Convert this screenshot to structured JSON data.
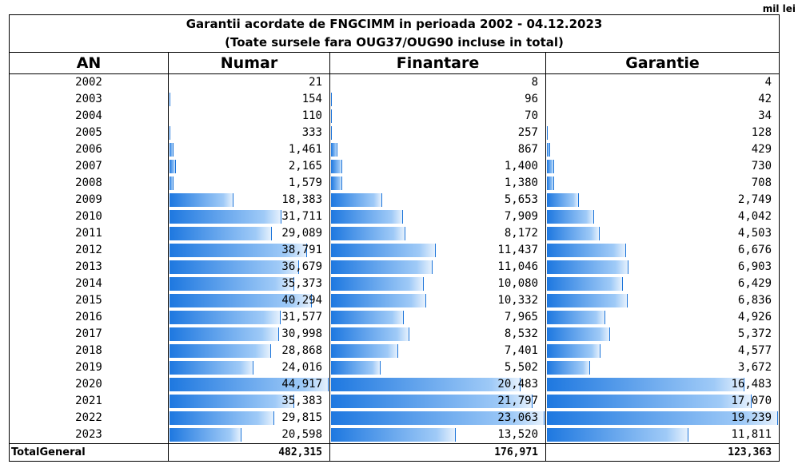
{
  "unit_label": "mil lei",
  "title_line1": "Garantii acordate de FNGCIMM in perioada 2002 - 04.12.2023",
  "title_line2": "(Toate sursele fara OUG37/OUG90 incluse in total)",
  "headers": {
    "year": "AN",
    "numar": "Numar",
    "finantare": "Finantare",
    "garantie": "Garantie"
  },
  "chart_data": {
    "type": "table",
    "title": "Garantii acordate de FNGCIMM in perioada 2002 - 04.12.2023",
    "subtitle": "(Toate sursele fara OUG37/OUG90 incluse in total)",
    "unit": "mil lei",
    "columns": [
      "AN",
      "Numar",
      "Finantare",
      "Garantie"
    ],
    "rows": [
      {
        "year": "2002",
        "numar": 21,
        "numar_text": "21",
        "finantare": 8,
        "finantare_text": "8",
        "garantie": 4,
        "garantie_text": "4"
      },
      {
        "year": "2003",
        "numar": 154,
        "numar_text": "154",
        "finantare": 96,
        "finantare_text": "96",
        "garantie": 42,
        "garantie_text": "42"
      },
      {
        "year": "2004",
        "numar": 110,
        "numar_text": "110",
        "finantare": 70,
        "finantare_text": "70",
        "garantie": 34,
        "garantie_text": "34"
      },
      {
        "year": "2005",
        "numar": 333,
        "numar_text": "333",
        "finantare": 257,
        "finantare_text": "257",
        "garantie": 128,
        "garantie_text": "128"
      },
      {
        "year": "2006",
        "numar": 1461,
        "numar_text": "1,461",
        "finantare": 867,
        "finantare_text": "867",
        "garantie": 429,
        "garantie_text": "429"
      },
      {
        "year": "2007",
        "numar": 2165,
        "numar_text": "2,165",
        "finantare": 1400,
        "finantare_text": "1,400",
        "garantie": 730,
        "garantie_text": "730"
      },
      {
        "year": "2008",
        "numar": 1579,
        "numar_text": "1,579",
        "finantare": 1380,
        "finantare_text": "1,380",
        "garantie": 708,
        "garantie_text": "708"
      },
      {
        "year": "2009",
        "numar": 18383,
        "numar_text": "18,383",
        "finantare": 5653,
        "finantare_text": "5,653",
        "garantie": 2749,
        "garantie_text": "2,749"
      },
      {
        "year": "2010",
        "numar": 31711,
        "numar_text": "31,711",
        "finantare": 7909,
        "finantare_text": "7,909",
        "garantie": 4042,
        "garantie_text": "4,042"
      },
      {
        "year": "2011",
        "numar": 29089,
        "numar_text": "29,089",
        "finantare": 8172,
        "finantare_text": "8,172",
        "garantie": 4503,
        "garantie_text": "4,503"
      },
      {
        "year": "2012",
        "numar": 38791,
        "numar_text": "38,791",
        "finantare": 11437,
        "finantare_text": "11,437",
        "garantie": 6676,
        "garantie_text": "6,676"
      },
      {
        "year": "2013",
        "numar": 36679,
        "numar_text": "36,679",
        "finantare": 11046,
        "finantare_text": "11,046",
        "garantie": 6903,
        "garantie_text": "6,903"
      },
      {
        "year": "2014",
        "numar": 35373,
        "numar_text": "35,373",
        "finantare": 10080,
        "finantare_text": "10,080",
        "garantie": 6429,
        "garantie_text": "6,429"
      },
      {
        "year": "2015",
        "numar": 40294,
        "numar_text": "40,294",
        "finantare": 10332,
        "finantare_text": "10,332",
        "garantie": 6836,
        "garantie_text": "6,836"
      },
      {
        "year": "2016",
        "numar": 31577,
        "numar_text": "31,577",
        "finantare": 7965,
        "finantare_text": "7,965",
        "garantie": 4926,
        "garantie_text": "4,926"
      },
      {
        "year": "2017",
        "numar": 30998,
        "numar_text": "30,998",
        "finantare": 8532,
        "finantare_text": "8,532",
        "garantie": 5372,
        "garantie_text": "5,372"
      },
      {
        "year": "2018",
        "numar": 28868,
        "numar_text": "28,868",
        "finantare": 7401,
        "finantare_text": "7,401",
        "garantie": 4577,
        "garantie_text": "4,577"
      },
      {
        "year": "2019",
        "numar": 24016,
        "numar_text": "24,016",
        "finantare": 5502,
        "finantare_text": "5,502",
        "garantie": 3672,
        "garantie_text": "3,672"
      },
      {
        "year": "2020",
        "numar": 44917,
        "numar_text": "44,917",
        "finantare": 20483,
        "finantare_text": "20,483",
        "garantie": 16483,
        "garantie_text": "16,483"
      },
      {
        "year": "2021",
        "numar": 35383,
        "numar_text": "35,383",
        "finantare": 21797,
        "finantare_text": "21,797",
        "garantie": 17070,
        "garantie_text": "17,070"
      },
      {
        "year": "2022",
        "numar": 29815,
        "numar_text": "29,815",
        "finantare": 23063,
        "finantare_text": "23,063",
        "garantie": 19239,
        "garantie_text": "19,239"
      },
      {
        "year": "2023",
        "numar": 20598,
        "numar_text": "20,598",
        "finantare": 13520,
        "finantare_text": "13,520",
        "garantie": 11811,
        "garantie_text": "11,811"
      }
    ],
    "total": {
      "label": "TotalGeneral",
      "numar": 482315,
      "numar_text": "482,315",
      "finantare": 176971,
      "finantare_text": "176,971",
      "garantie": 123363,
      "garantie_text": "123,363"
    },
    "bar_color_start": "#1e78e0",
    "bar_color_end": "#e6f1fd",
    "bar_border": "#1a73d9"
  }
}
